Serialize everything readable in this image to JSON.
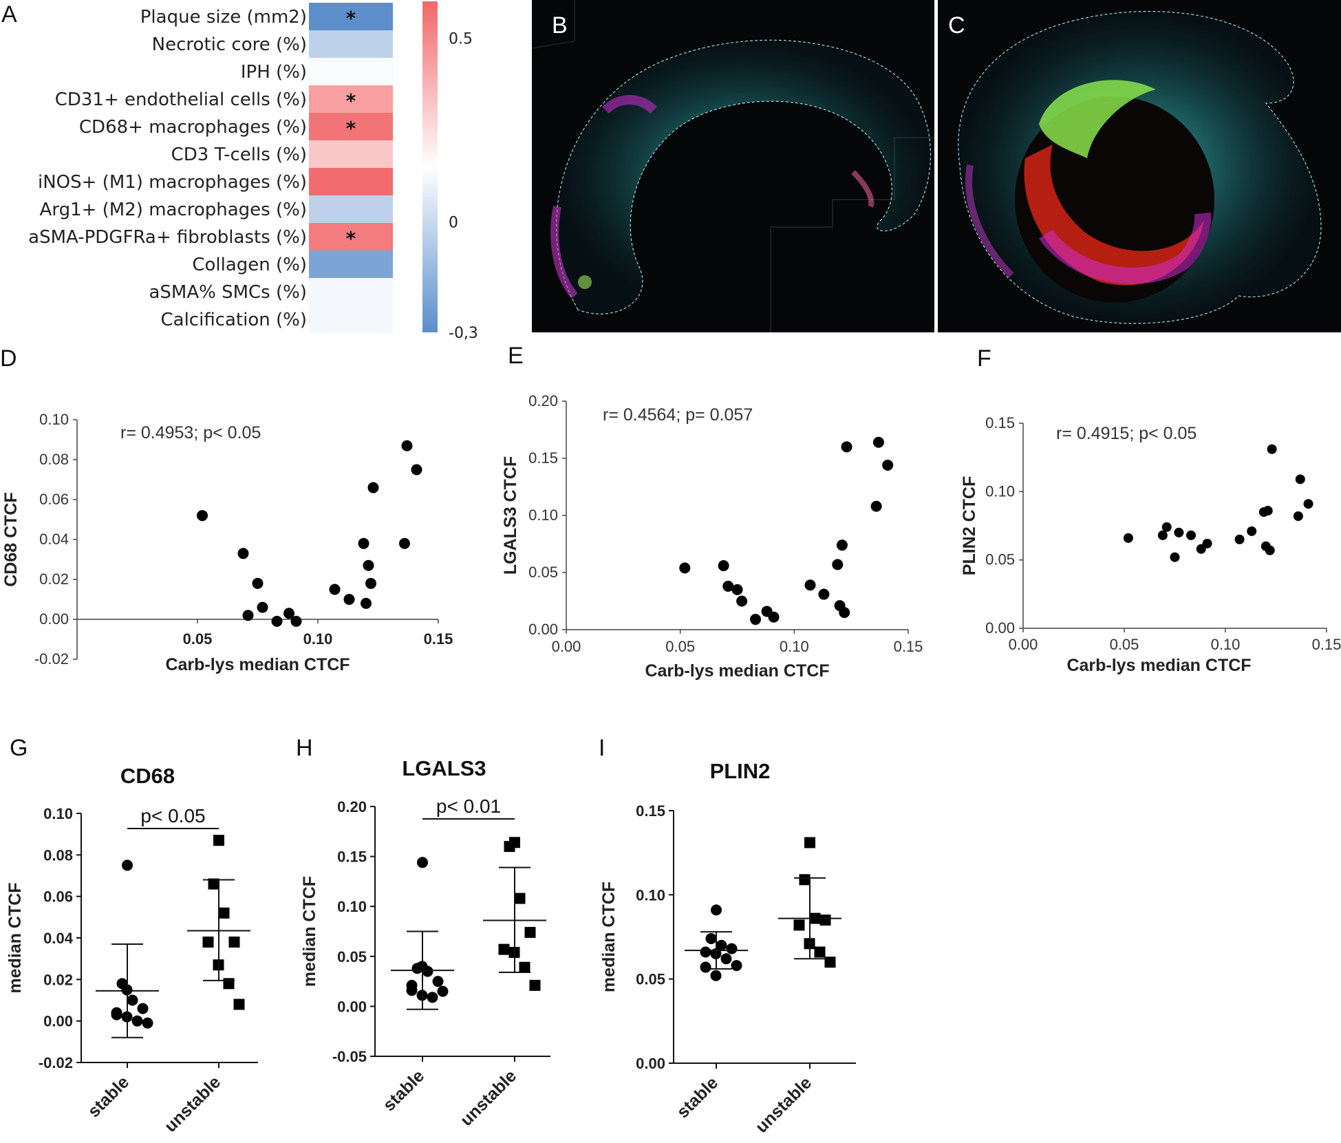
{
  "panels": {
    "A": "A",
    "B": "B",
    "C": "C",
    "D": "D",
    "E": "E",
    "F": "F",
    "G": "G",
    "H": "H",
    "I": "I"
  },
  "chart_data": [
    {
      "panel": "A",
      "type": "heatmap",
      "rows": [
        "Plaque size (mm2)",
        "Necrotic core (%)",
        "IPH (%)",
        "CD31+ endothelial cells (%)",
        "CD68+ macrophages (%)",
        "CD3 T-cells (%)",
        "iNOS+ (M1) macrophages (%)",
        "Arg1+ (M2) macrophages (%)",
        "aSMA-PDGFRa+ fibroblasts (%)",
        "Collagen (%)",
        "aSMA% SMCs (%)",
        "Calcification (%)"
      ],
      "values": [
        -0.3,
        -0.12,
        -0.01,
        0.38,
        0.55,
        0.22,
        0.58,
        -0.12,
        0.52,
        -0.24,
        -0.02,
        -0.02
      ],
      "significant": [
        "*",
        "",
        "",
        "*",
        "*",
        "",
        "",
        "",
        "*",
        "",
        "",
        ""
      ],
      "colorbar": {
        "min": -0.3,
        "max": 0.6,
        "ticks": [
          "0.5",
          "0",
          "-0,3"
        ],
        "tick_values": [
          0.5,
          0,
          -0.3
        ],
        "low_color": "#5b8ecb",
        "mid_color": "#ffffff",
        "high_color": "#f2676a"
      }
    },
    {
      "panel": "D",
      "type": "scatter",
      "xlabel": "Carb-lys median CTCF",
      "ylabel": "CD68 CTCF",
      "annotation": "r= 0.4953; p< 0.05",
      "xlim": [
        0,
        0.15
      ],
      "ylim": [
        -0.02,
        0.1
      ],
      "xticks": [
        "0.05",
        "0.10",
        "0.15"
      ],
      "yticks": [
        "0.10",
        "0.08",
        "0.06",
        "0.04",
        "0.02",
        "0.00",
        "-0.02"
      ],
      "points": [
        [
          0.052,
          0.052
        ],
        [
          0.069,
          0.033
        ],
        [
          0.071,
          0.002
        ],
        [
          0.075,
          0.018
        ],
        [
          0.077,
          0.006
        ],
        [
          0.083,
          -0.001
        ],
        [
          0.088,
          0.003
        ],
        [
          0.091,
          -0.001
        ],
        [
          0.107,
          0.015
        ],
        [
          0.113,
          0.01
        ],
        [
          0.119,
          0.038
        ],
        [
          0.12,
          0.008
        ],
        [
          0.121,
          0.027
        ],
        [
          0.122,
          0.018
        ],
        [
          0.123,
          0.066
        ],
        [
          0.136,
          0.038
        ],
        [
          0.137,
          0.087
        ],
        [
          0.141,
          0.075
        ]
      ]
    },
    {
      "panel": "E",
      "type": "scatter",
      "xlabel": "Carb-lys median CTCF",
      "ylabel": "LGALS3 CTCF",
      "annotation": "r= 0.4564; p= 0.057",
      "xlim": [
        0,
        0.15
      ],
      "ylim": [
        0,
        0.2
      ],
      "xticks": [
        "0.00",
        "0.05",
        "0.10",
        "0.15"
      ],
      "yticks": [
        "0.20",
        "0.15",
        "0.10",
        "0.05",
        "0.00"
      ],
      "points": [
        [
          0.052,
          0.054
        ],
        [
          0.069,
          0.056
        ],
        [
          0.071,
          0.038
        ],
        [
          0.075,
          0.035
        ],
        [
          0.077,
          0.025
        ],
        [
          0.083,
          0.009
        ],
        [
          0.088,
          0.016
        ],
        [
          0.091,
          0.011
        ],
        [
          0.107,
          0.039
        ],
        [
          0.113,
          0.031
        ],
        [
          0.119,
          0.057
        ],
        [
          0.12,
          0.021
        ],
        [
          0.121,
          0.074
        ],
        [
          0.122,
          0.015
        ],
        [
          0.123,
          0.16
        ],
        [
          0.136,
          0.108
        ],
        [
          0.137,
          0.164
        ],
        [
          0.141,
          0.144
        ]
      ]
    },
    {
      "panel": "F",
      "type": "scatter",
      "xlabel": "Carb-lys median CTCF",
      "ylabel": "PLIN2 CTCF",
      "annotation": "r= 0.4915; p< 0.05",
      "xlim": [
        0,
        0.15
      ],
      "ylim": [
        0,
        0.15
      ],
      "xticks": [
        "0.00",
        "0.05",
        "0.10",
        "0.15"
      ],
      "yticks": [
        "0.15",
        "0.10",
        "0.05",
        "0.00"
      ],
      "points": [
        [
          0.052,
          0.066
        ],
        [
          0.069,
          0.068
        ],
        [
          0.071,
          0.074
        ],
        [
          0.075,
          0.052
        ],
        [
          0.077,
          0.07
        ],
        [
          0.083,
          0.068
        ],
        [
          0.088,
          0.058
        ],
        [
          0.091,
          0.062
        ],
        [
          0.107,
          0.065
        ],
        [
          0.113,
          0.071
        ],
        [
          0.119,
          0.085
        ],
        [
          0.12,
          0.06
        ],
        [
          0.121,
          0.086
        ],
        [
          0.122,
          0.057
        ],
        [
          0.123,
          0.131
        ],
        [
          0.136,
          0.082
        ],
        [
          0.137,
          0.109
        ],
        [
          0.141,
          0.091
        ]
      ]
    },
    {
      "panel": "G",
      "type": "scatter",
      "title": "CD68",
      "ylabel": "median CTCF",
      "categories": [
        "stable",
        "unstable"
      ],
      "significance": "p< 0.05",
      "ylim": [
        -0.02,
        0.1
      ],
      "yticks": [
        "0.10",
        "0.08",
        "0.06",
        "0.04",
        "0.02",
        "0.00",
        "-0.02"
      ],
      "series": [
        {
          "name": "stable",
          "values": [
            0.075,
            0.018,
            0.01,
            0.006,
            0.003,
            0.002,
            0.0,
            -0.001,
            0.004,
            0.015
          ],
          "mean": 0.0145,
          "sd_low": -0.008,
          "sd_high": 0.037
        },
        {
          "name": "unstable",
          "values": [
            0.087,
            0.066,
            0.052,
            0.038,
            0.038,
            0.027,
            0.018,
            0.008
          ],
          "mean": 0.0435,
          "sd_low": 0.0195,
          "sd_high": 0.068
        }
      ]
    },
    {
      "panel": "H",
      "type": "scatter",
      "title": "LGALS3",
      "ylabel": "median CTCF",
      "categories": [
        "stable",
        "unstable"
      ],
      "significance": "p< 0.01",
      "ylim": [
        -0.05,
        0.2
      ],
      "yticks": [
        "0.20",
        "0.15",
        "0.10",
        "0.05",
        "0.00",
        "-0.05"
      ],
      "series": [
        {
          "name": "stable",
          "values": [
            0.144,
            0.038,
            0.035,
            0.025,
            0.016,
            0.011,
            0.009,
            0.015,
            0.021,
            0.04
          ],
          "mean": 0.036,
          "sd_low": -0.003,
          "sd_high": 0.075
        },
        {
          "name": "unstable",
          "values": [
            0.164,
            0.16,
            0.108,
            0.074,
            0.057,
            0.054,
            0.039,
            0.021
          ],
          "mean": 0.086,
          "sd_low": 0.034,
          "sd_high": 0.139
        }
      ]
    },
    {
      "panel": "I",
      "type": "scatter",
      "title": "PLIN2",
      "ylabel": "median CTCF",
      "categories": [
        "stable",
        "unstable"
      ],
      "ylim": [
        0,
        0.15
      ],
      "yticks": [
        "0.15",
        "0.10",
        "0.05",
        "0.00"
      ],
      "series": [
        {
          "name": "stable",
          "values": [
            0.091,
            0.074,
            0.07,
            0.068,
            0.066,
            0.065,
            0.062,
            0.058,
            0.057,
            0.052
          ],
          "mean": 0.067,
          "sd_low": 0.056,
          "sd_high": 0.078
        },
        {
          "name": "unstable",
          "values": [
            0.131,
            0.109,
            0.086,
            0.085,
            0.082,
            0.071,
            0.066,
            0.06
          ],
          "mean": 0.086,
          "sd_low": 0.062,
          "sd_high": 0.11
        }
      ]
    }
  ]
}
